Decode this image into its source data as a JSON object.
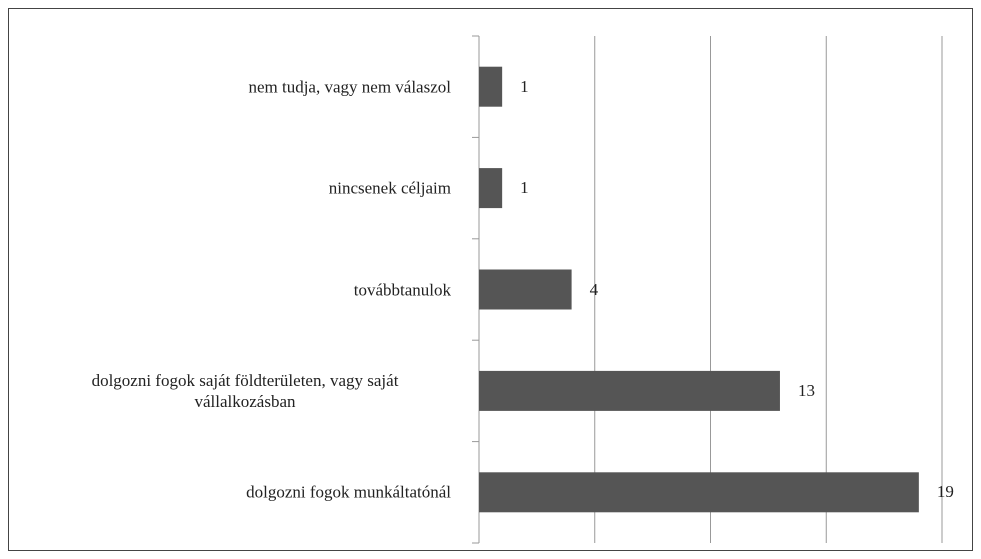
{
  "chart_data": {
    "type": "bar",
    "orientation": "horizontal",
    "categories": [
      "nem tudja, vagy nem válaszol",
      "nincsenek céljaim",
      "továbbtanulok",
      "dolgozni fogok saját földterületen, vagy saját vállalkozásban",
      "dolgozni fogok munkáltatónál"
    ],
    "values": [
      1,
      1,
      4,
      13,
      19
    ],
    "color": "#555555",
    "xlim": [
      0,
      20
    ],
    "xticks": [
      0,
      5,
      10,
      15,
      20
    ],
    "grid": true,
    "data_labels": true
  }
}
